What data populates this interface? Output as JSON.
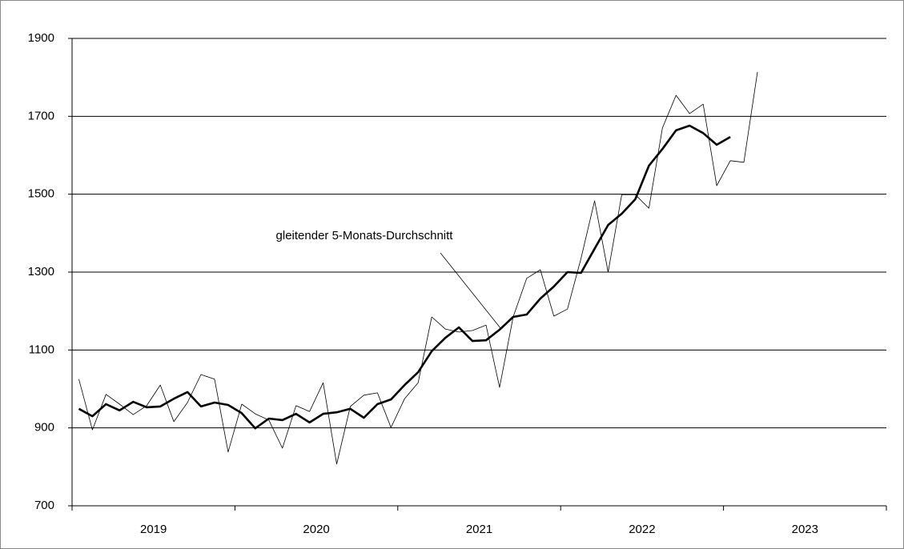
{
  "chart_data": {
    "type": "line",
    "annotation": "gleitender 5-Monats-Durchschnitt",
    "categories": [
      "2019",
      "2020",
      "2021",
      "2022",
      "2023"
    ],
    "series": [
      {
        "color": "#000000",
        "width": 0.8,
        "values": [
          [
            1025,
            895,
            986,
            961,
            934,
            957,
            1010,
            916,
            965,
            1037,
            1025,
            838
          ],
          [
            961,
            936,
            920,
            848,
            957,
            942,
            1016,
            807,
            955,
            984,
            990,
            901
          ],
          [
            975,
            1016,
            1185,
            1154,
            1146,
            1150,
            1164,
            1004,
            1185,
            1284,
            1306,
            1187
          ],
          [
            1205,
            1335,
            1483,
            1300,
            1499,
            1499,
            1464,
            1670,
            1754,
            1707,
            1731,
            1522
          ],
          [
            1586,
            1582,
            1814,
            null,
            null,
            null,
            null,
            null,
            null,
            null,
            null,
            null
          ]
        ]
      },
      {
        "name": "gleitender 5-Monats-Durchschnitt",
        "color": "#000000",
        "width": 2.6,
        "values": [
          [
            949,
            930,
            961,
            945,
            967,
            953,
            955,
            975,
            992,
            955,
            965,
            959
          ],
          [
            938,
            899,
            924,
            920,
            936,
            914,
            936,
            940,
            949,
            926,
            961,
            973
          ],
          [
            1010,
            1043,
            1097,
            1131,
            1158,
            1123,
            1125,
            1152,
            1185,
            1191,
            1232,
            1263
          ],
          [
            1300,
            1298,
            1360,
            1421,
            1450,
            1487,
            1573,
            1616,
            1664,
            1676,
            1657,
            1627
          ],
          [
            1647,
            null,
            null,
            null,
            null,
            null,
            null,
            null,
            null,
            null,
            null,
            null
          ]
        ]
      }
    ],
    "ylim": [
      700,
      1900
    ],
    "yticks": [
      700,
      900,
      1100,
      1300,
      1500,
      1700,
      1900
    ],
    "grid": true
  }
}
